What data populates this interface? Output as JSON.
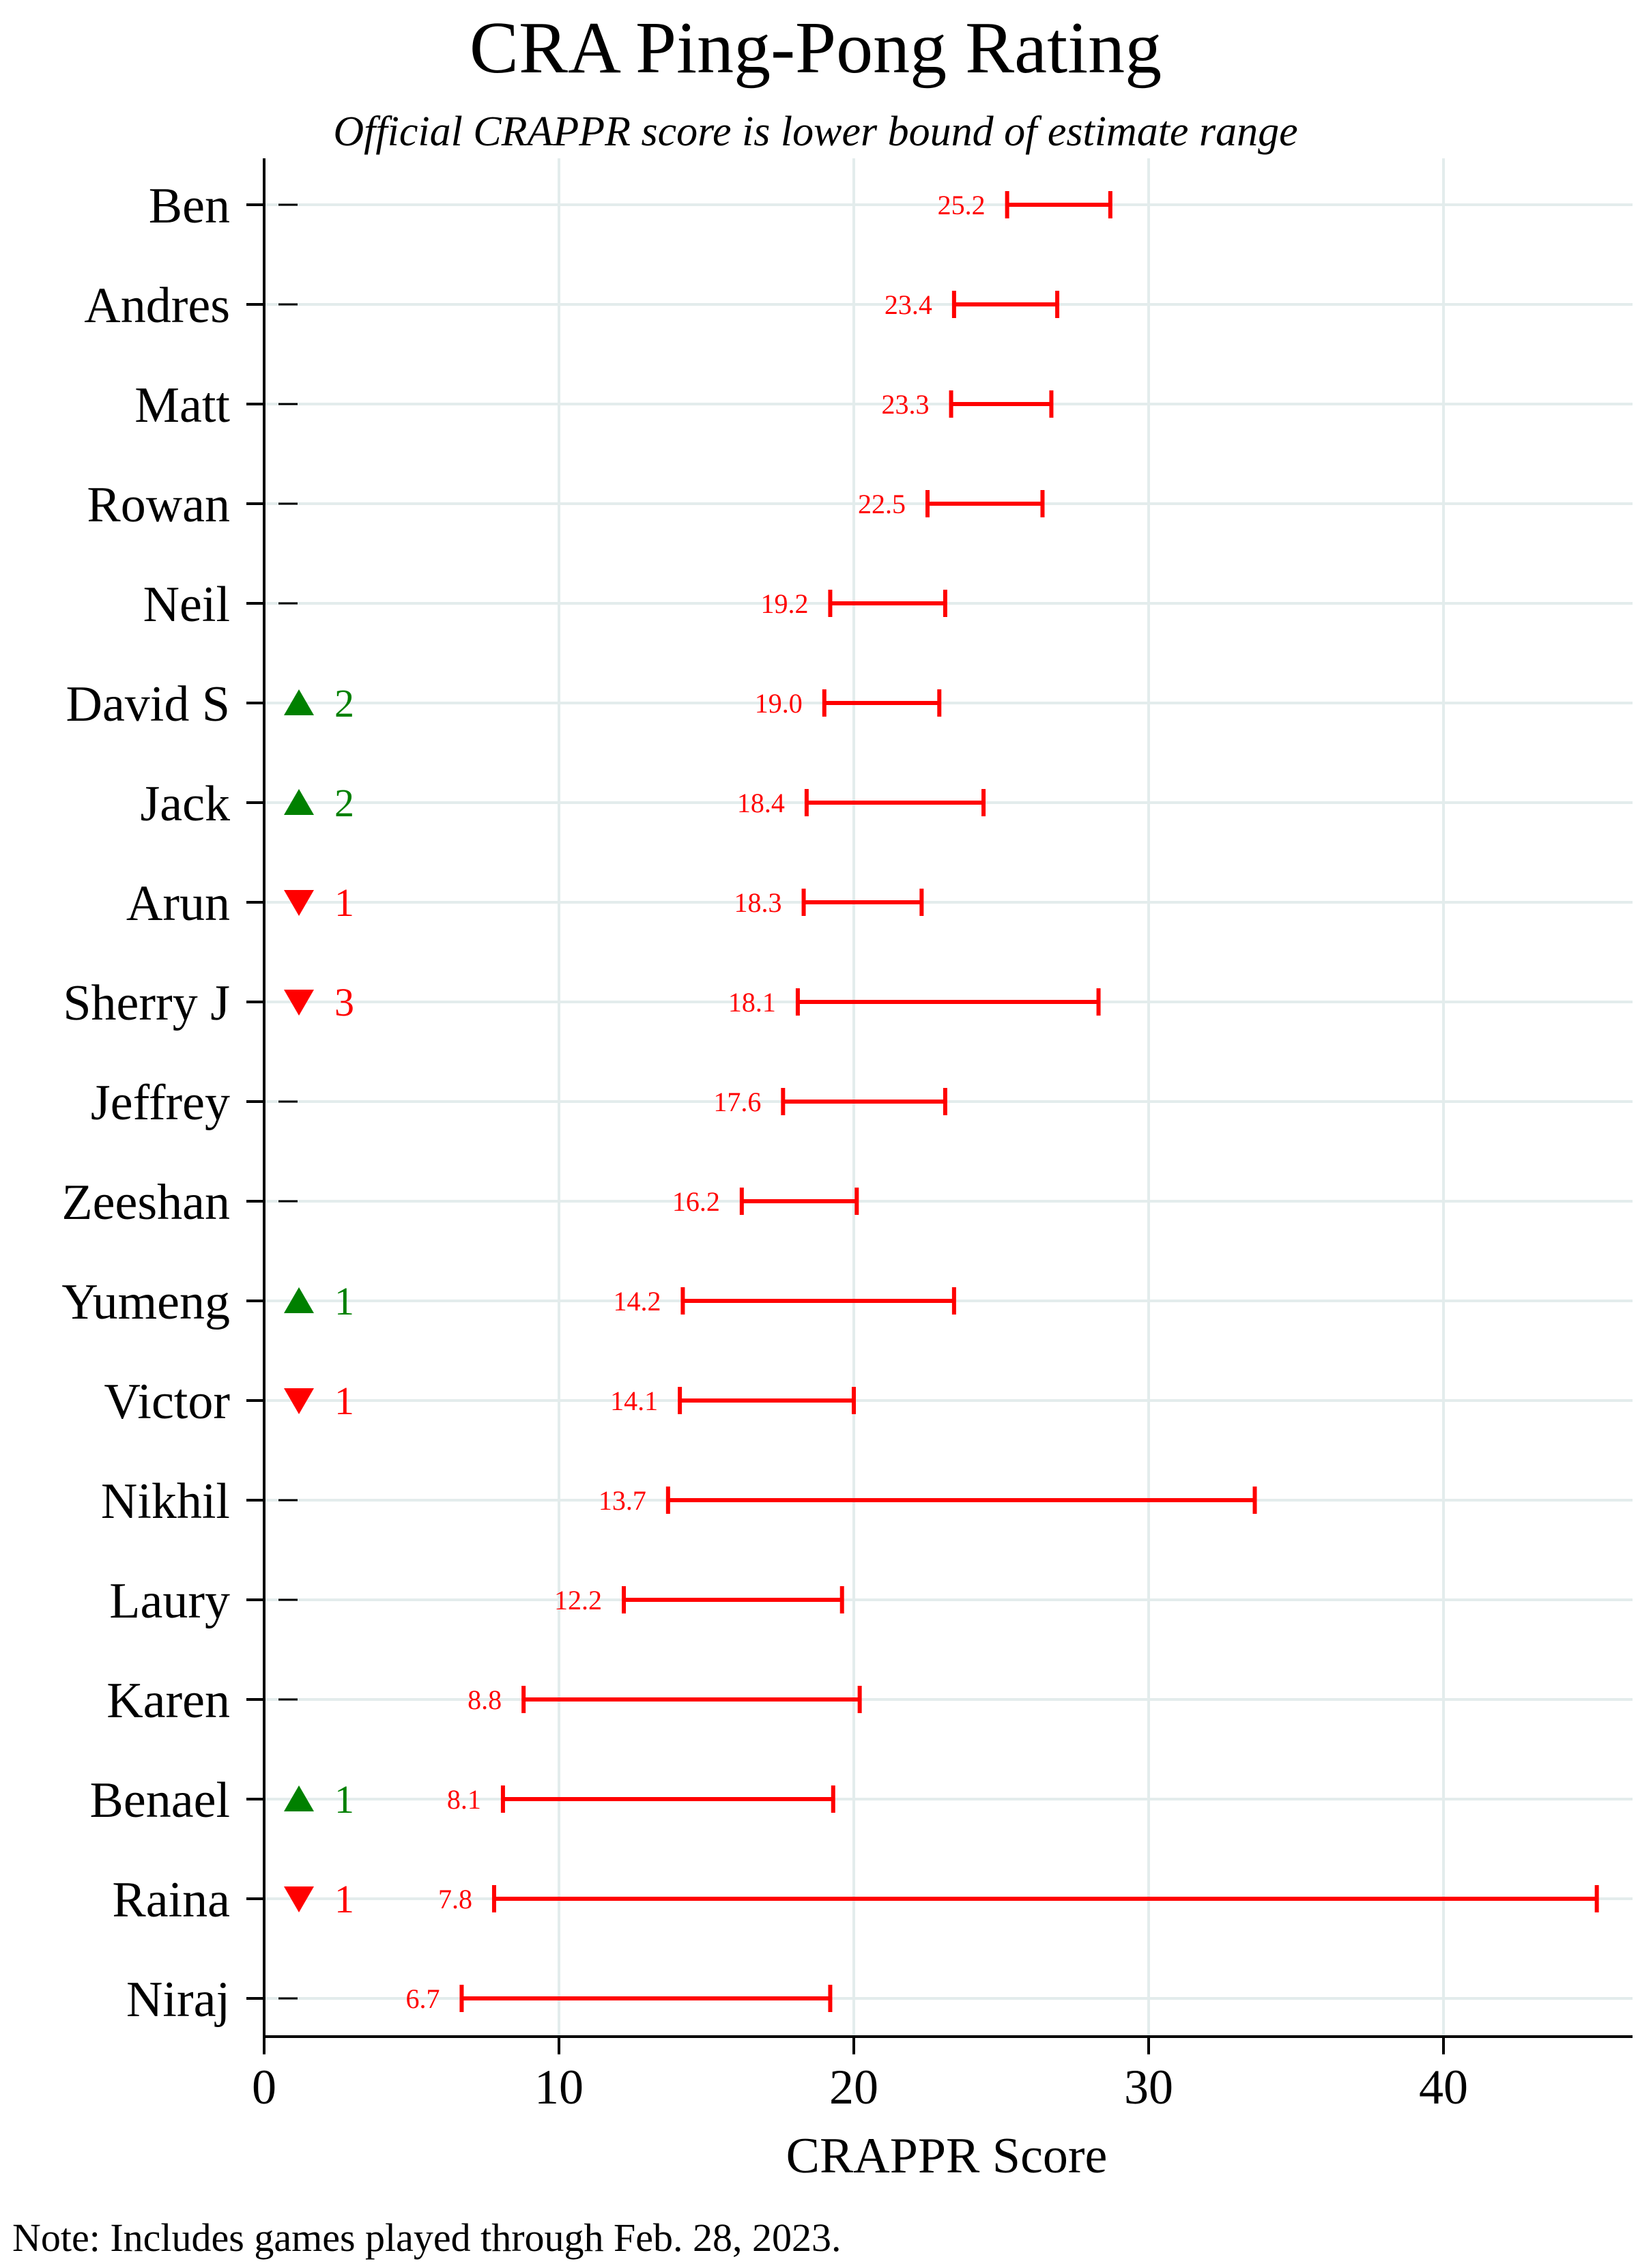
{
  "chart_data": {
    "type": "range",
    "title": "CRA Ping-Pong Rating",
    "subtitle": "Official CRAPPR score is lower bound of estimate range",
    "xlabel": "CRAPPR Score",
    "xlim": [
      0,
      46
    ],
    "xticks": [
      0,
      10,
      20,
      30,
      40
    ],
    "grid": true,
    "note": "Note: Includes games played through Feb. 28, 2023.",
    "colors": {
      "range": "#ff0000",
      "up": "#008000",
      "down": "#ff0000",
      "grid": "#e3ecec"
    },
    "players": [
      {
        "name": "Ben",
        "low": 25.2,
        "high": 28.7,
        "label": "25.2",
        "change": null,
        "change_text": ""
      },
      {
        "name": "Andres",
        "low": 23.4,
        "high": 26.9,
        "label": "23.4",
        "change": null,
        "change_text": ""
      },
      {
        "name": "Matt",
        "low": 23.3,
        "high": 26.7,
        "label": "23.3",
        "change": null,
        "change_text": ""
      },
      {
        "name": "Rowan",
        "low": 22.5,
        "high": 26.4,
        "label": "22.5",
        "change": null,
        "change_text": ""
      },
      {
        "name": "Neil",
        "low": 19.2,
        "high": 23.1,
        "label": "19.2",
        "change": null,
        "change_text": ""
      },
      {
        "name": "David S",
        "low": 19.0,
        "high": 22.9,
        "label": "19.0",
        "change": "up",
        "change_text": "2"
      },
      {
        "name": "Jack",
        "low": 18.4,
        "high": 24.4,
        "label": "18.4",
        "change": "up",
        "change_text": "2"
      },
      {
        "name": "Arun",
        "low": 18.3,
        "high": 22.3,
        "label": "18.3",
        "change": "down",
        "change_text": "1"
      },
      {
        "name": "Sherry J",
        "low": 18.1,
        "high": 28.3,
        "label": "18.1",
        "change": "down",
        "change_text": "3"
      },
      {
        "name": "Jeffrey",
        "low": 17.6,
        "high": 23.1,
        "label": "17.6",
        "change": null,
        "change_text": ""
      },
      {
        "name": "Zeeshan",
        "low": 16.2,
        "high": 20.1,
        "label": "16.2",
        "change": null,
        "change_text": ""
      },
      {
        "name": "Yumeng",
        "low": 14.2,
        "high": 23.4,
        "label": "14.2",
        "change": "up",
        "change_text": "1"
      },
      {
        "name": "Victor",
        "low": 14.1,
        "high": 20.0,
        "label": "14.1",
        "change": "down",
        "change_text": "1"
      },
      {
        "name": "Nikhil",
        "low": 13.7,
        "high": 33.6,
        "label": "13.7",
        "change": null,
        "change_text": ""
      },
      {
        "name": "Laury",
        "low": 12.2,
        "high": 19.6,
        "label": "12.2",
        "change": null,
        "change_text": ""
      },
      {
        "name": "Karen",
        "low": 8.8,
        "high": 20.2,
        "label": "8.8",
        "change": null,
        "change_text": ""
      },
      {
        "name": "Benael",
        "low": 8.1,
        "high": 19.3,
        "label": "8.1",
        "change": "up",
        "change_text": "1"
      },
      {
        "name": "Raina",
        "low": 7.8,
        "high": 45.2,
        "label": "7.8",
        "change": "down",
        "change_text": "1"
      },
      {
        "name": "Niraj",
        "low": 6.7,
        "high": 19.2,
        "label": "6.7",
        "change": null,
        "change_text": ""
      }
    ]
  }
}
